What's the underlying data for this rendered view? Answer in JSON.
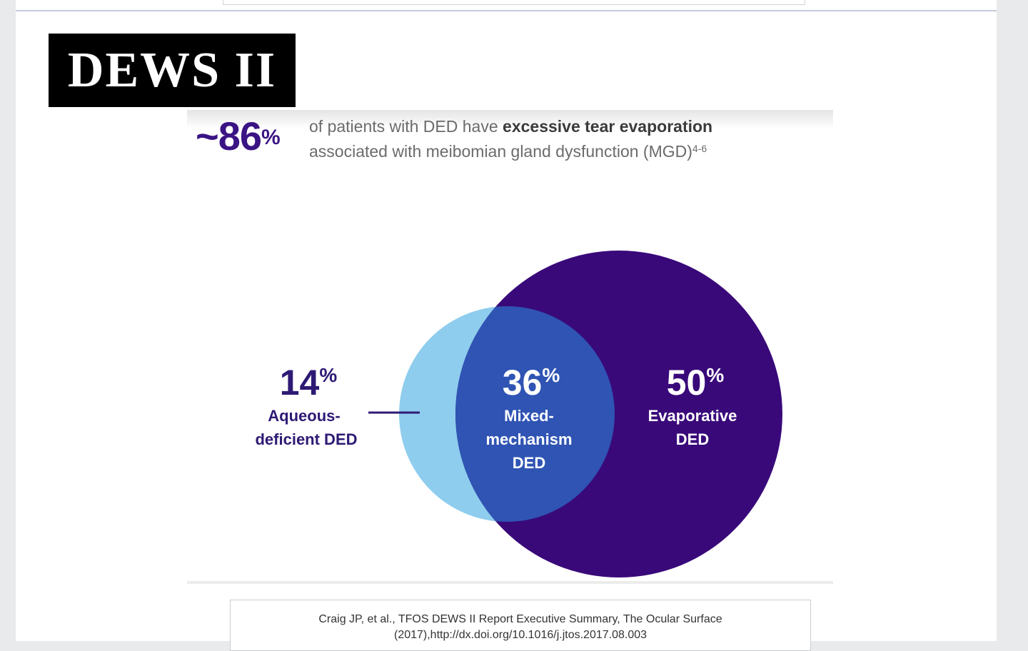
{
  "title": "DEWS II",
  "headline": {
    "value": "~86",
    "unit": "%",
    "text_prefix": "of patients with DED have",
    "text_bold": "excessive tear evaporation",
    "text_line2": "associated with meibomian gland dysfunction (MGD)",
    "reference": "4-6"
  },
  "venn": {
    "aqueous": {
      "value": "14",
      "unit": "%",
      "label_line1": "Aqueous-",
      "label_line2": "deficient DED"
    },
    "mixed": {
      "value": "36",
      "unit": "%",
      "label_line1": "Mixed-",
      "label_line2": "mechanism",
      "label_line3": "DED"
    },
    "evaporative": {
      "value": "50",
      "unit": "%",
      "label_line1": "Evaporative",
      "label_line2": "DED"
    },
    "colors": {
      "aqueous_circle": "#8ecdee",
      "overlap": "#2f54b3",
      "evaporative_circle": "#39097a",
      "label_text": "#2e1a74"
    }
  },
  "citation": {
    "line1": "Craig JP, et al., TFOS DEWS II Report Executive Summary, The Ocular Surface",
    "line2": "(2017),http://dx.doi.org/10.1016/j.jtos.2017.08.003"
  }
}
